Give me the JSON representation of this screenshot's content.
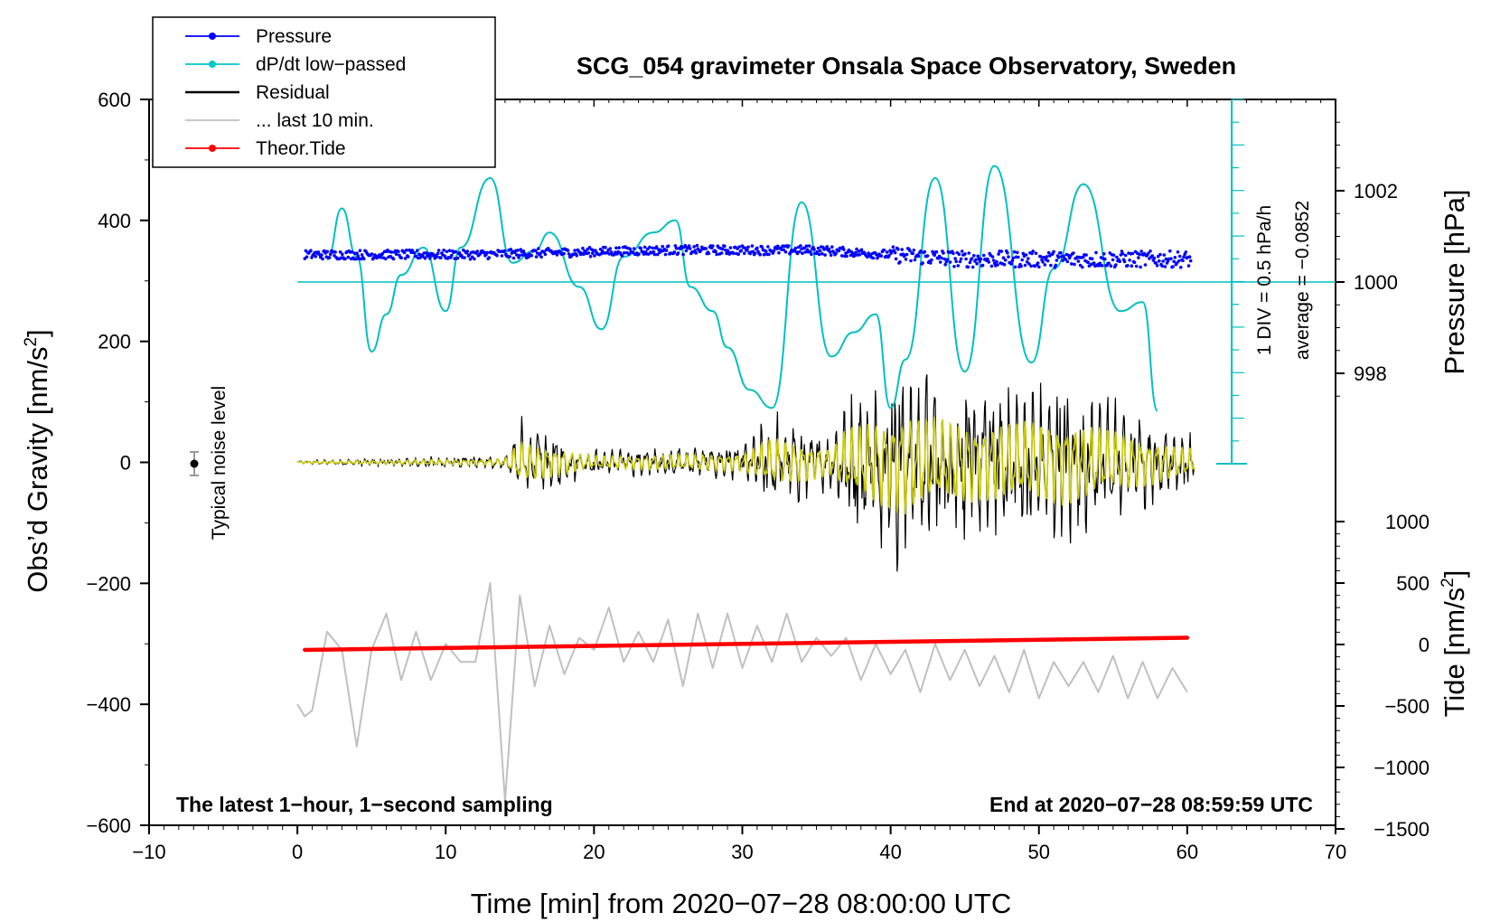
{
  "chart_data": {
    "type": "line",
    "title": "SCG_054 gravimeter Onsala Space Observatory, Sweden",
    "xlabel": "Time [min] from 2020−07−28 08:00:00 UTC",
    "ylabel_main": "Obs’d Gravity [nm/s",
    "ylabel_main_sup": "2",
    "ylabel_main_close": "]",
    "ylabel_pressure": "Pressure [hPa]",
    "ylabel_tide": "Tide [nm/s",
    "ylabel_tide_sup": "2",
    "ylabel_tide_close": "]",
    "xlim": [
      -10,
      70
    ],
    "ylim": [
      -600,
      600
    ],
    "x_ticks": [
      "−10",
      "0",
      "10",
      "20",
      "30",
      "40",
      "50",
      "60",
      "70"
    ],
    "y_ticks": [
      "600",
      "400",
      "200",
      "0",
      "−200",
      "−400",
      "−600"
    ],
    "pressure_ticks": [
      "1002",
      "1000",
      "998"
    ],
    "pressure_tick_values": [
      1002,
      1000,
      998
    ],
    "tide_ticks": [
      "1000",
      "500",
      "0",
      "−500",
      "−1000",
      "−1500"
    ],
    "tide_tick_values": [
      1000,
      500,
      0,
      -500,
      -1000,
      -1500
    ],
    "legend": [
      {
        "label": "Pressure",
        "color": "#0000ff",
        "marker": true
      },
      {
        "label": "dP/dt low−passed",
        "color": "#00c8c8",
        "marker": true
      },
      {
        "label": "Residual",
        "color": "#000000",
        "marker": false
      },
      {
        "label": "... last 10 min.",
        "color": "#c0c0c0",
        "marker": false
      },
      {
        "label": "Theor.Tide",
        "color": "#ff0000",
        "marker": true
      }
    ],
    "annotations": {
      "noise": "Typical noise level",
      "div": "1 DIV = 0.5 hPa/h",
      "average": "average = −0.0852",
      "bottom_left": "The latest 1−hour, 1−second sampling",
      "bottom_right": "End at 2020−07−28 08:59:59 UTC"
    },
    "colors": {
      "pressure": "#0000ff",
      "dpdt": "#00c0c0",
      "residual": "#000000",
      "last10": "#c0c0c0",
      "filtered": "#cccc00",
      "tide": "#ff0000"
    },
    "series": [
      {
        "name": "dP/dt low-passed",
        "type": "line",
        "x": [
          2,
          3,
          4,
          5,
          6,
          7,
          8.5,
          10,
          11,
          13,
          14.5,
          16,
          17,
          19,
          20.5,
          22,
          24,
          25.5,
          26.5,
          28,
          29,
          30.5,
          32,
          34,
          36,
          37.5,
          39,
          40,
          41,
          43,
          45,
          47,
          49.5,
          51,
          53,
          55.5,
          57,
          58
        ],
        "y": [
          335,
          420,
          340,
          183,
          245,
          310,
          355,
          250,
          355,
          470,
          330,
          350,
          380,
          290,
          220,
          340,
          380,
          400,
          290,
          250,
          190,
          120,
          90,
          430,
          175,
          215,
          245,
          90,
          170,
          470,
          150,
          490,
          165,
          320,
          460,
          250,
          265,
          85
        ]
      },
      {
        "name": "Pressure",
        "type": "scatter",
        "level_hpa": [
          1000.6,
          1000.6,
          1000.7,
          1000.7,
          1000.5,
          1000.5
        ],
        "x": [
          0.5,
          12,
          25,
          35,
          45,
          60
        ]
      },
      {
        "name": "Residual envelope",
        "x": [
          0,
          14,
          15,
          20,
          30,
          32,
          36,
          37,
          41,
          42,
          46,
          52,
          60
        ],
        "amplitude": [
          3,
          10,
          60,
          18,
          25,
          70,
          40,
          95,
          150,
          130,
          110,
          120,
          40
        ]
      },
      {
        "name": "... last 10 min.",
        "type": "line",
        "x": [
          0,
          0.5,
          1,
          2,
          3,
          4,
          5,
          6,
          7,
          8,
          9,
          10,
          11,
          12,
          13,
          14,
          15,
          16,
          17,
          18,
          19,
          20,
          21,
          22,
          23,
          24,
          25,
          26,
          27,
          28,
          29,
          30,
          31,
          32,
          33,
          34,
          35,
          36,
          37,
          38,
          39,
          40,
          41,
          42,
          43,
          44,
          45,
          46,
          47,
          48,
          49,
          50,
          51,
          52,
          53,
          54,
          55,
          56,
          57,
          58,
          59,
          60
        ],
        "y": [
          -400,
          -420,
          -410,
          -280,
          -310,
          -470,
          -310,
          -250,
          -360,
          -280,
          -360,
          -300,
          -330,
          -330,
          -200,
          -560,
          -220,
          -370,
          -270,
          -350,
          -290,
          -310,
          -240,
          -330,
          -280,
          -330,
          -260,
          -370,
          -250,
          -340,
          -250,
          -340,
          -270,
          -330,
          -250,
          -330,
          -290,
          -320,
          -290,
          -360,
          -300,
          -350,
          -310,
          -380,
          -300,
          -360,
          -310,
          -370,
          -320,
          -380,
          -310,
          -390,
          -330,
          -370,
          -330,
          -380,
          -320,
          -390,
          -330,
          -390,
          -340,
          -380
        ]
      },
      {
        "name": "Theor.Tide",
        "type": "line",
        "x": [
          0.5,
          60
        ],
        "y": [
          -310,
          -290
        ]
      }
    ]
  }
}
